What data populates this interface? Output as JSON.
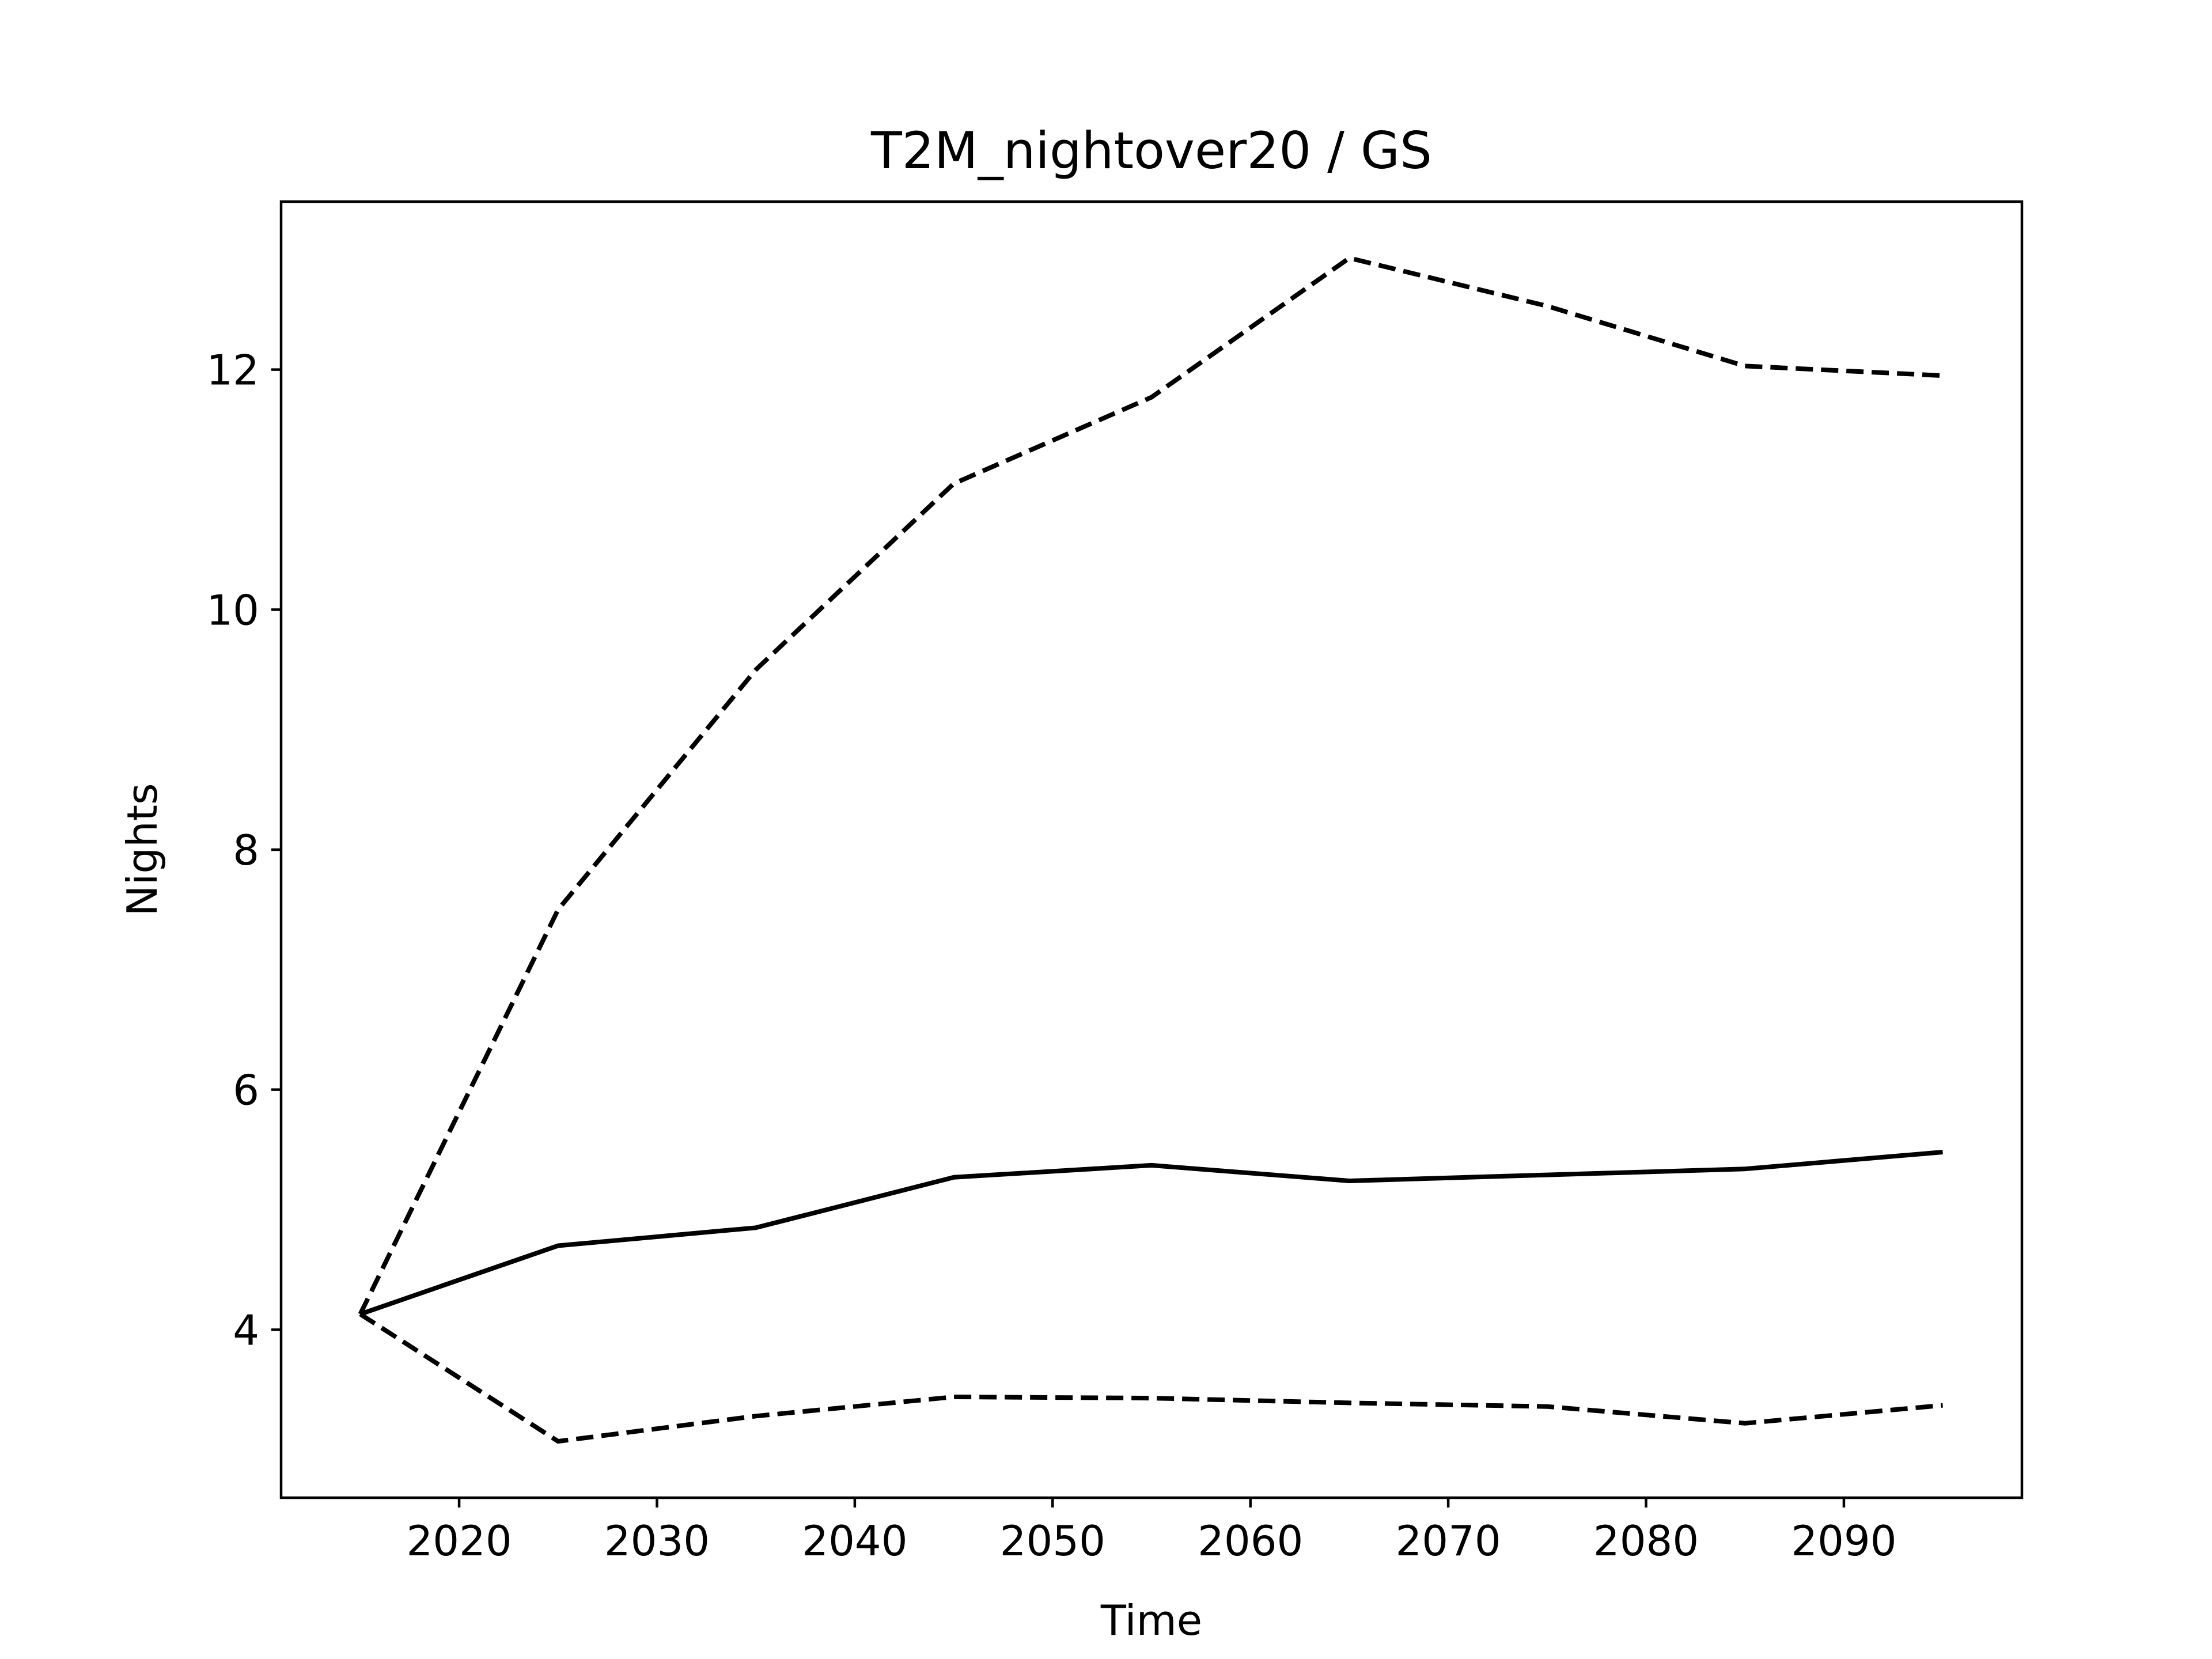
{
  "chart_data": {
    "type": "line",
    "title": "T2M_nightover20 / GS",
    "xlabel": "Time",
    "ylabel": "Nights",
    "xlim": [
      2011,
      2099
    ],
    "ylim": [
      2.6,
      13.4
    ],
    "xticks": [
      2020,
      2030,
      2040,
      2050,
      2060,
      2070,
      2080,
      2090
    ],
    "yticks": [
      4,
      6,
      8,
      10,
      12
    ],
    "xtick_labels": [
      "2020",
      "2030",
      "2040",
      "2050",
      "2060",
      "2070",
      "2080",
      "2090"
    ],
    "ytick_labels": [
      "4",
      "6",
      "8",
      "10",
      "12"
    ],
    "grid": false,
    "x": [
      2015,
      2025,
      2035,
      2045,
      2055,
      2065,
      2075,
      2085,
      2095
    ],
    "series": [
      {
        "style": "dashed",
        "color": "#000000",
        "values": [
          4.13,
          7.5,
          9.5,
          11.05,
          11.77,
          12.93,
          12.53,
          12.03,
          11.95
        ]
      },
      {
        "style": "solid",
        "color": "#000000",
        "values": [
          4.13,
          4.7,
          4.85,
          5.27,
          5.37,
          5.24,
          5.29,
          5.34,
          5.48
        ]
      },
      {
        "style": "dashed",
        "color": "#000000",
        "values": [
          4.13,
          3.07,
          3.28,
          3.44,
          3.43,
          3.39,
          3.36,
          3.22,
          3.37
        ]
      }
    ]
  }
}
